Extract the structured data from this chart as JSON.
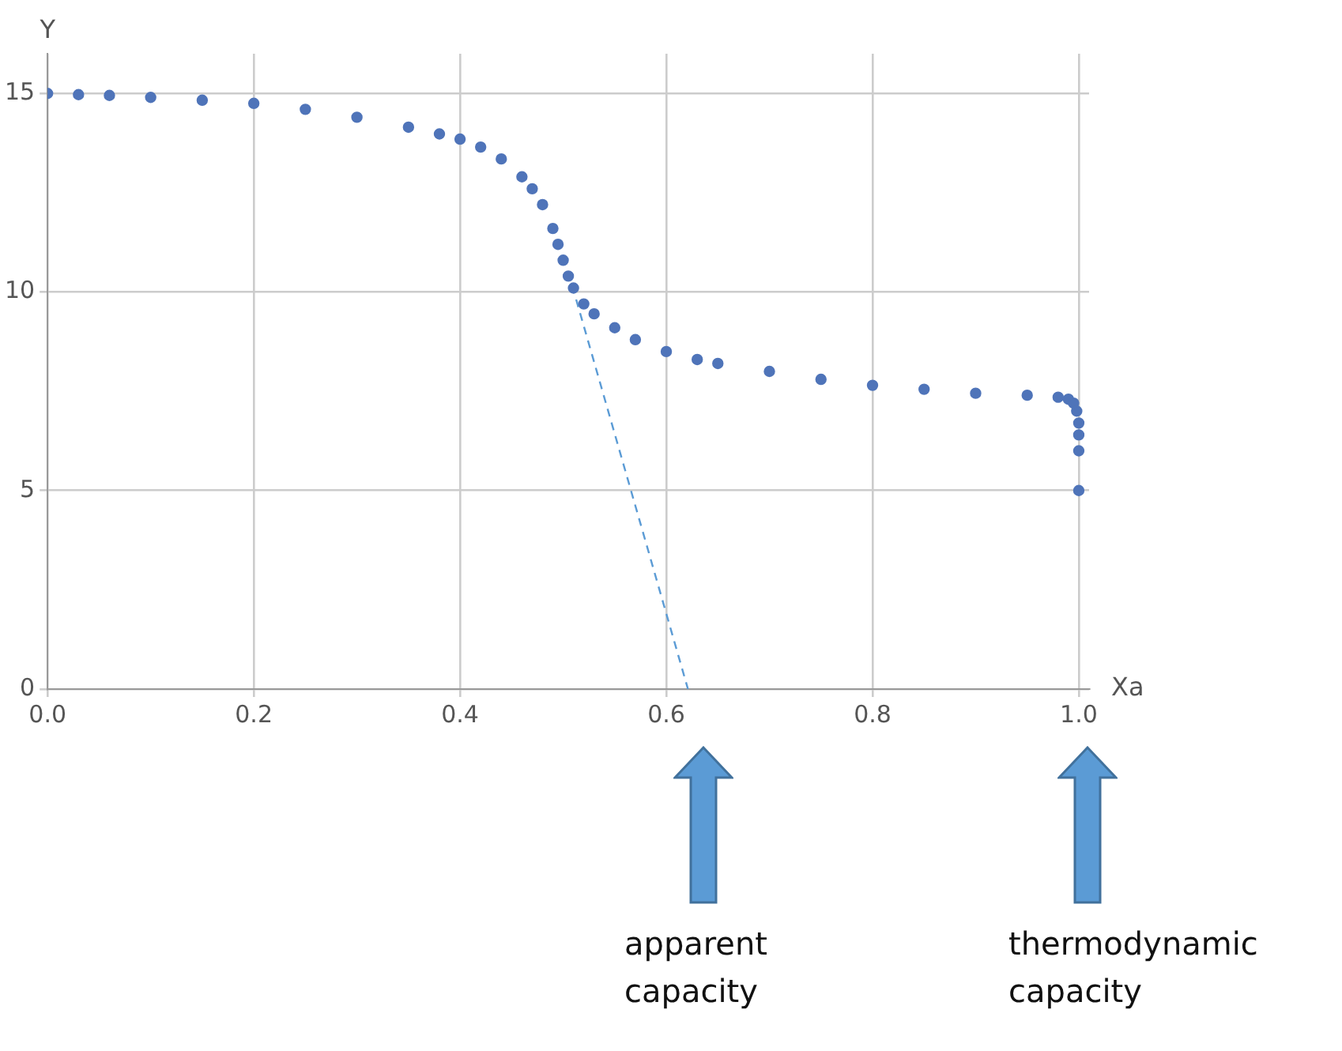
{
  "chart_data": {
    "type": "scatter",
    "xlabel": "Xa",
    "ylabel": "Y",
    "xlim": [
      0,
      1.01
    ],
    "ylim": [
      0,
      16
    ],
    "xticks": [
      {
        "value": 0,
        "label": "0.0"
      },
      0.2,
      0.4,
      0.6,
      0.8,
      {
        "value": 1,
        "label": "1.0"
      }
    ],
    "yticks": [
      0,
      5,
      10,
      15
    ],
    "grid": true,
    "marker": "circle",
    "series": [
      {
        "color": "#4f74b9",
        "x": [
          0,
          0.03,
          0.06,
          0.1,
          0.15,
          0.2,
          0.25,
          0.3,
          0.35,
          0.38,
          0.4,
          0.42,
          0.44,
          0.46,
          0.47,
          0.48,
          0.49,
          0.495,
          0.5,
          0.505,
          0.51,
          0.52,
          0.53,
          0.55,
          0.57,
          0.6,
          0.63,
          0.65,
          0.7,
          0.75,
          0.8,
          0.85,
          0.9,
          0.95,
          0.98,
          0.99,
          0.995,
          0.998,
          1,
          1,
          1,
          1
        ],
        "values": [
          15,
          14.97,
          14.95,
          14.9,
          14.83,
          14.75,
          14.6,
          14.4,
          14.15,
          13.98,
          13.85,
          13.65,
          13.35,
          12.9,
          12.6,
          12.2,
          11.6,
          11.2,
          10.8,
          10.4,
          10.1,
          9.7,
          9.45,
          9.1,
          8.8,
          8.5,
          8.3,
          8.2,
          8,
          7.8,
          7.65,
          7.55,
          7.45,
          7.4,
          7.35,
          7.3,
          7.2,
          7,
          6.7,
          6.4,
          6,
          5
        ]
      },
      {
        "type": "line",
        "marker": "none",
        "line_style": "dashed",
        "color": "#5b9bd5",
        "x": [
          0.505,
          0.621
        ],
        "values": [
          10.5,
          0
        ]
      }
    ],
    "annotations": [
      "apparent capacity",
      "thermodynamic capacity"
    ]
  }
}
